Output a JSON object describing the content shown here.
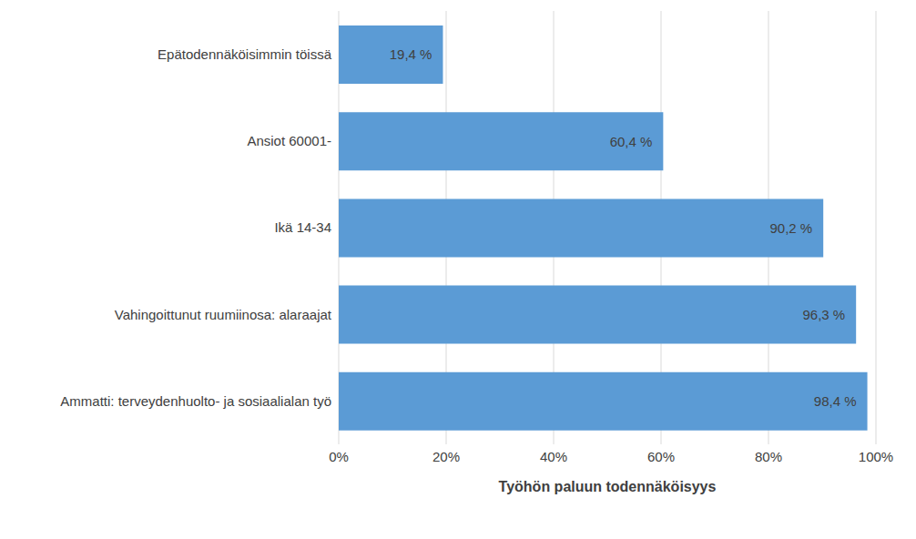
{
  "chart_data": {
    "type": "bar",
    "orientation": "horizontal",
    "categories": [
      "Epätodennäköisimmin töissä",
      "Ansiot 60001-",
      "Ikä 14-34",
      "Vahingoittunut ruumiinosa: alaraajat",
      "Ammatti: terveydenhuolto- ja sosiaalialan työ"
    ],
    "values": [
      19.4,
      60.4,
      90.2,
      96.3,
      98.4
    ],
    "value_labels": [
      "19,4 %",
      "60,4 %",
      "90,2 %",
      "96,3 %",
      "98,4 %"
    ],
    "data_labels": true,
    "color": "#5b9bd5",
    "x_label": "Työhön paluun todennäköisyys",
    "xlim": [
      0,
      100
    ],
    "xticks": [
      {
        "value": 0,
        "label": "0%"
      },
      {
        "value": 20,
        "label": "20%"
      },
      {
        "value": 40,
        "label": "40%"
      },
      {
        "value": 60,
        "label": "60%"
      },
      {
        "value": 80,
        "label": "80%"
      },
      {
        "value": 100,
        "label": "100%"
      }
    ],
    "grid": true
  }
}
